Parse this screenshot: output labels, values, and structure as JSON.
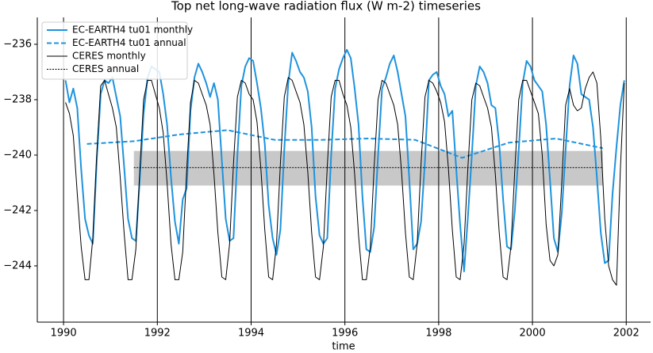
{
  "chart_data": {
    "type": "line",
    "title": "Top net long-wave radiation flux (W m-2) timeseries",
    "x_label": "time",
    "xlim": [
      1989.44,
      2002.52
    ],
    "xticks": [
      1990,
      1992,
      1994,
      1996,
      1998,
      2000,
      2002
    ],
    "ylim": [
      -246.03,
      -235.03
    ],
    "yticks": [
      {
        "value": -244,
        "label": "−244"
      },
      {
        "value": -242,
        "label": "−242"
      },
      {
        "value": -240,
        "label": "−240"
      },
      {
        "value": -238,
        "label": "−238"
      },
      {
        "value": -236,
        "label": "−236"
      }
    ],
    "x_grid": true,
    "legend": "upper left",
    "x": [
      1990.042,
      1990.125,
      1990.208,
      1990.292,
      1990.375,
      1990.458,
      1990.542,
      1990.625,
      1990.708,
      1990.792,
      1990.875,
      1990.958,
      1991.042,
      1991.125,
      1991.208,
      1991.292,
      1991.375,
      1991.458,
      1991.542,
      1991.625,
      1991.708,
      1991.792,
      1991.875,
      1991.958,
      1992.042,
      1992.125,
      1992.208,
      1992.292,
      1992.375,
      1992.458,
      1992.542,
      1992.625,
      1992.708,
      1992.792,
      1992.875,
      1992.958,
      1993.042,
      1993.125,
      1993.208,
      1993.292,
      1993.375,
      1993.458,
      1993.542,
      1993.625,
      1993.708,
      1993.792,
      1993.875,
      1993.958,
      1994.042,
      1994.125,
      1994.208,
      1994.292,
      1994.375,
      1994.458,
      1994.542,
      1994.625,
      1994.708,
      1994.792,
      1994.875,
      1994.958,
      1995.042,
      1995.125,
      1995.208,
      1995.292,
      1995.375,
      1995.458,
      1995.542,
      1995.625,
      1995.708,
      1995.792,
      1995.875,
      1995.958,
      1996.042,
      1996.125,
      1996.208,
      1996.292,
      1996.375,
      1996.458,
      1996.542,
      1996.625,
      1996.708,
      1996.792,
      1996.875,
      1996.958,
      1997.042,
      1997.125,
      1997.208,
      1997.292,
      1997.375,
      1997.458,
      1997.542,
      1997.625,
      1997.708,
      1997.792,
      1997.875,
      1997.958,
      1998.042,
      1998.125,
      1998.208,
      1998.292,
      1998.375,
      1998.458,
      1998.542,
      1998.625,
      1998.708,
      1998.792,
      1998.875,
      1998.958,
      1999.042,
      1999.125,
      1999.208,
      1999.292,
      1999.375,
      1999.458,
      1999.542,
      1999.625,
      1999.708,
      1999.792,
      1999.875,
      1999.958,
      2000.042,
      2000.125,
      2000.208,
      2000.292,
      2000.375,
      2000.458,
      2000.542,
      2000.625,
      2000.708,
      2000.792,
      2000.875,
      2000.958,
      2001.042,
      2001.125,
      2001.208,
      2001.292,
      2001.375,
      2001.458,
      2001.542,
      2001.625,
      2001.708,
      2001.792,
      2001.875,
      2001.958
    ],
    "series": [
      {
        "name": "EC-EARTH4 tu01 monthly",
        "color": "#1f93dd",
        "style": "solid",
        "width": 2,
        "values": [
          -237.3,
          -238.1,
          -237.6,
          -238.3,
          -240.5,
          -242.3,
          -242.9,
          -243.2,
          -240.2,
          -237.8,
          -237.3,
          -237.4,
          -237.2,
          -237.9,
          -238.6,
          -240.4,
          -242.3,
          -243.0,
          -243.1,
          -240.9,
          -238.5,
          -237.2,
          -236.8,
          -236.9,
          -237.0,
          -237.8,
          -238.9,
          -240.8,
          -242.4,
          -243.2,
          -241.6,
          -241.2,
          -238.4,
          -237.2,
          -236.7,
          -237.0,
          -237.4,
          -237.9,
          -237.4,
          -238.0,
          -240.2,
          -242.3,
          -243.1,
          -243.0,
          -240.0,
          -237.5,
          -236.8,
          -236.5,
          -236.6,
          -237.4,
          -238.3,
          -239.6,
          -241.8,
          -243.0,
          -243.6,
          -242.7,
          -239.8,
          -237.4,
          -236.3,
          -236.6,
          -237.0,
          -237.2,
          -237.7,
          -239.0,
          -241.5,
          -242.9,
          -243.2,
          -243.0,
          -240.0,
          -237.6,
          -236.9,
          -236.5,
          -236.2,
          -236.5,
          -237.6,
          -238.9,
          -241.5,
          -243.4,
          -243.5,
          -242.6,
          -240.0,
          -237.6,
          -237.2,
          -236.7,
          -236.4,
          -237.0,
          -237.8,
          -238.6,
          -240.9,
          -243.4,
          -243.2,
          -242.4,
          -240.2,
          -237.3,
          -237.1,
          -237.0,
          -237.5,
          -237.8,
          -238.6,
          -238.4,
          -240.5,
          -242.5,
          -244.2,
          -242.2,
          -240.0,
          -237.5,
          -236.8,
          -237.0,
          -237.4,
          -238.2,
          -238.3,
          -239.6,
          -241.6,
          -243.3,
          -243.4,
          -242.0,
          -239.8,
          -237.4,
          -236.6,
          -236.8,
          -237.3,
          -237.5,
          -237.7,
          -238.9,
          -240.9,
          -243.0,
          -243.5,
          -242.1,
          -239.8,
          -237.5,
          -236.4,
          -236.7,
          -237.8,
          -237.9,
          -238.0,
          -239.0,
          -240.8,
          -242.8,
          -243.9,
          -243.8,
          -241.4,
          -239.7,
          -238.2,
          -237.3
        ]
      },
      {
        "name": "EC-EARTH4 tu01 annual",
        "color": "#1f93dd",
        "style": "dashed",
        "width": 2,
        "x": [
          1990.5,
          1991.5,
          1992.5,
          1993.5,
          1994.5,
          1995.5,
          1996.5,
          1997.5,
          1998.5,
          1999.5,
          2000.5,
          2001.5
        ],
        "values": [
          -239.6,
          -239.5,
          -239.25,
          -239.1,
          -239.45,
          -239.45,
          -239.4,
          -239.45,
          -240.1,
          -239.55,
          -239.4,
          -239.75
        ]
      },
      {
        "name": "CERES monthly",
        "color": "#000000",
        "style": "solid",
        "width": 1,
        "values": [
          -238.1,
          -238.5,
          -239.3,
          -241.4,
          -243.3,
          -244.5,
          -244.5,
          -243.0,
          -240.0,
          -237.5,
          -237.3,
          -237.8,
          -238.3,
          -239.0,
          -240.8,
          -242.8,
          -244.5,
          -244.5,
          -243.4,
          -240.6,
          -238.0,
          -237.3,
          -237.3,
          -237.8,
          -238.3,
          -239.2,
          -241.0,
          -243.2,
          -244.5,
          -244.5,
          -243.5,
          -240.6,
          -238.1,
          -237.3,
          -237.4,
          -237.8,
          -238.2,
          -238.9,
          -240.7,
          -242.8,
          -244.4,
          -244.5,
          -243.2,
          -240.3,
          -237.9,
          -237.3,
          -237.4,
          -237.8,
          -238.0,
          -238.8,
          -240.5,
          -242.7,
          -244.4,
          -244.5,
          -243.2,
          -240.3,
          -237.9,
          -237.2,
          -237.3,
          -237.7,
          -238.1,
          -238.9,
          -240.6,
          -242.8,
          -244.4,
          -244.5,
          -243.3,
          -240.4,
          -237.9,
          -237.3,
          -237.3,
          -237.8,
          -238.2,
          -239.0,
          -240.7,
          -242.9,
          -244.5,
          -244.5,
          -243.3,
          -240.4,
          -238.0,
          -237.3,
          -237.4,
          -237.8,
          -238.2,
          -238.9,
          -240.6,
          -242.8,
          -244.4,
          -244.5,
          -243.2,
          -240.3,
          -237.9,
          -237.3,
          -237.4,
          -237.7,
          -238.1,
          -238.8,
          -240.5,
          -242.7,
          -244.4,
          -244.5,
          -243.2,
          -240.4,
          -238.0,
          -237.4,
          -237.5,
          -237.9,
          -238.3,
          -239.0,
          -240.7,
          -242.8,
          -244.4,
          -244.5,
          -243.3,
          -240.5,
          -238.0,
          -237.3,
          -237.3,
          -237.7,
          -238.1,
          -238.5,
          -240.0,
          -242.5,
          -243.8,
          -244.0,
          -243.6,
          -241.0,
          -238.2,
          -237.6,
          -238.2,
          -238.4,
          -238.3,
          -237.6,
          -237.2,
          -237.0,
          -237.4,
          -239.4,
          -242.3,
          -244.0,
          -244.5,
          -244.7,
          -240.5,
          -237.4
        ]
      },
      {
        "name": "CERES annual",
        "color": "#000000",
        "style": "dotted",
        "width": 1,
        "x": [
          1991.5,
          2001.5
        ],
        "values": [
          -240.45,
          -240.45
        ],
        "range": [
          -241.1,
          -239.85
        ]
      }
    ]
  }
}
